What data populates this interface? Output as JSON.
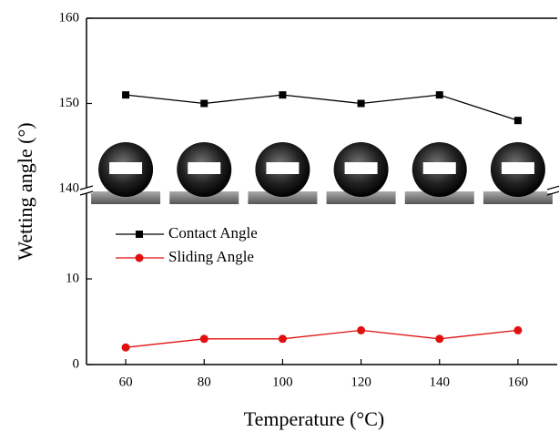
{
  "chart_data": [
    {
      "type": "line",
      "ylabel": "Wetting angle (°)",
      "x": [
        60,
        80,
        100,
        120,
        140,
        160
      ],
      "xlim": [
        50,
        170
      ],
      "ylim": [
        140,
        160
      ],
      "yticks": [
        140,
        150,
        160
      ],
      "series": [
        {
          "name": "Contact Angle",
          "color": "#000000",
          "marker": "square",
          "values": [
            151,
            150,
            151,
            150,
            151,
            148
          ]
        }
      ]
    },
    {
      "type": "line",
      "xlabel": "Temperature (°C)",
      "x": [
        60,
        80,
        100,
        120,
        140,
        160
      ],
      "xlim": [
        50,
        170
      ],
      "xticks": [
        60,
        80,
        100,
        120,
        140,
        160
      ],
      "ylim": [
        0,
        20
      ],
      "yticks": [
        0,
        10
      ],
      "legend": "upper left",
      "series": [
        {
          "name": "Sliding Angle",
          "color": "#e01010",
          "marker": "circle",
          "values": [
            2,
            3,
            3,
            4,
            3,
            4
          ]
        }
      ]
    }
  ]
}
